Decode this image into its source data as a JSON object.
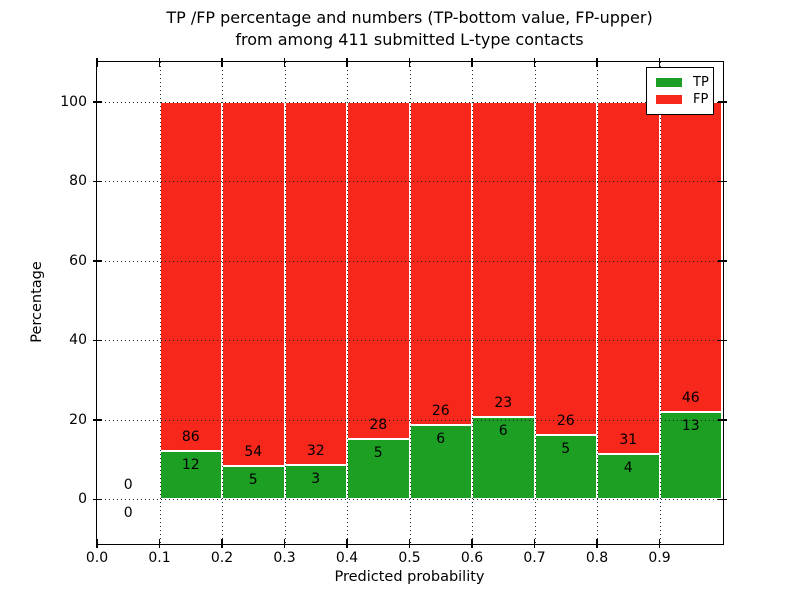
{
  "title": {
    "line1": "TP /FP percentage and numbers (TP-bottom value, FP-upper)",
    "line2": "from among 411 submitted L-type contacts"
  },
  "axes": {
    "xlabel": "Predicted probability",
    "ylabel": "Percentage",
    "xtick_labels": [
      "0.0",
      "0.1",
      "0.2",
      "0.3",
      "0.4",
      "0.5",
      "0.6",
      "0.7",
      "0.8",
      "0.9"
    ],
    "ytick_labels": [
      "0",
      "20",
      "40",
      "60",
      "80",
      "100"
    ]
  },
  "chart_data": {
    "type": "bar",
    "stacked": true,
    "title": "TP /FP percentage and numbers (TP-bottom value, FP-upper) from among 411 submitted L-type contacts",
    "xlabel": "Predicted probability",
    "ylabel": "Percentage",
    "xlim": [
      0.0,
      1.0
    ],
    "ylim": [
      -11,
      110
    ],
    "grid": true,
    "grid_style": "dotted",
    "legend_position": "upper right",
    "bin_width": 0.1,
    "bin_starts": [
      0.0,
      0.1,
      0.2,
      0.3,
      0.4,
      0.5,
      0.6,
      0.7,
      0.8,
      0.9
    ],
    "xticks": [
      0.0,
      0.1,
      0.2,
      0.3,
      0.4,
      0.5,
      0.6,
      0.7,
      0.8,
      0.9
    ],
    "yticks": [
      0,
      20,
      40,
      60,
      80,
      100
    ],
    "series": [
      {
        "name": "TP",
        "color": "#1d9f24",
        "counts": [
          0,
          12,
          5,
          3,
          5,
          6,
          6,
          5,
          4,
          13
        ]
      },
      {
        "name": "FP",
        "color": "#f8271b",
        "counts": [
          0,
          86,
          54,
          32,
          28,
          26,
          23,
          26,
          31,
          46
        ]
      }
    ],
    "bar_heights_unit": "percent of bin total; each bin stacked to 100%",
    "value_labels": "FP count shown above TP/FP boundary, TP count shown below boundary"
  }
}
